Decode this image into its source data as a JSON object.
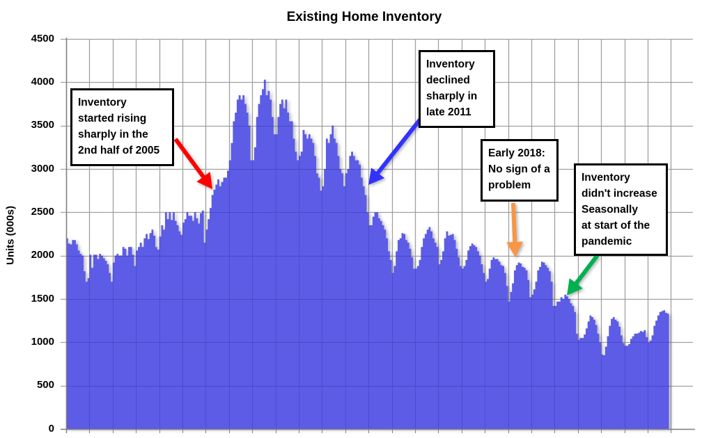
{
  "chart": {
    "title": "Existing Home Inventory",
    "ylabel": "Units (000s)",
    "yticks": [
      "4500",
      "4000",
      "3500",
      "3000",
      "2500",
      "2000",
      "1500",
      "1000",
      "500",
      "0"
    ],
    "bar_color": "#5b5be6",
    "grid_color": "#a0a0a0"
  },
  "callouts": [
    {
      "id": "rising-2005",
      "lines": [
        "Inventory",
        "started rising",
        "sharply in the",
        "2nd half of 2005"
      ],
      "arrow_color": "#ff0000"
    },
    {
      "id": "declined-2011",
      "lines": [
        "Inventory",
        "declined",
        "sharply in",
        "late 2011"
      ],
      "arrow_color": "#3333ff"
    },
    {
      "id": "early-2018",
      "lines": [
        "Early 2018:",
        "No sign of a",
        "problem"
      ],
      "arrow_color": "#f79646"
    },
    {
      "id": "pandemic",
      "lines": [
        "Inventory",
        "didn't increase",
        "Seasonally",
        "at start of the",
        "pandemic"
      ],
      "arrow_color": "#00b050"
    }
  ],
  "chart_data": {
    "type": "bar",
    "title": "Existing Home Inventory",
    "xlabel": "",
    "ylabel": "Units (000s)",
    "ylim": [
      0,
      4500
    ],
    "ytick_step": 500,
    "grid": true,
    "legend": null,
    "frequency": "monthly",
    "start": "1999-01",
    "x_tick_labels_visible": false,
    "values": [
      2200,
      2140,
      2130,
      2180,
      2180,
      2130,
      2060,
      2020,
      2000,
      1820,
      1700,
      1740,
      2010,
      1860,
      2010,
      2010,
      1960,
      2020,
      2000,
      1970,
      1940,
      1900,
      1800,
      1700,
      1920,
      2000,
      2020,
      2000,
      2000,
      2100,
      2080,
      2000,
      2100,
      2100,
      2010,
      1880,
      2060,
      2100,
      2150,
      2100,
      2200,
      2250,
      2190,
      2260,
      2300,
      2230,
      2100,
      2070,
      2220,
      2350,
      2300,
      2500,
      2420,
      2500,
      2410,
      2500,
      2400,
      2350,
      2280,
      2240,
      2380,
      2420,
      2500,
      2460,
      2460,
      2400,
      2500,
      2430,
      2370,
      2490,
      2520,
      2150,
      2300,
      2420,
      2550,
      2700,
      2760,
      2820,
      2880,
      2800,
      2850,
      2900,
      2900,
      2980,
      3100,
      3300,
      3550,
      3650,
      3800,
      3850,
      3800,
      3850,
      3750,
      3650,
      3500,
      3100,
      3100,
      3250,
      3600,
      3750,
      3850,
      3920,
      4030,
      3850,
      3900,
      3800,
      3600,
      3400,
      3400,
      3600,
      3750,
      3800,
      3700,
      3800,
      3650,
      3550,
      3550,
      3350,
      3200,
      3100,
      3150,
      3200,
      3450,
      3400,
      3350,
      3400,
      3350,
      3300,
      3150,
      2950,
      2900,
      2750,
      2800,
      3000,
      3350,
      3300,
      3400,
      3500,
      3350,
      3300,
      3150,
      3000,
      2950,
      2800,
      2950,
      3000,
      3150,
      3200,
      3150,
      3100,
      3100,
      3050,
      2900,
      2800,
      2700,
      2500,
      2350,
      2350,
      2450,
      2500,
      2500,
      2430,
      2400,
      2350,
      2300,
      2200,
      2050,
      1950,
      1800,
      1880,
      2050,
      2180,
      2200,
      2260,
      2250,
      2180,
      2150,
      2080,
      1980,
      1850,
      1850,
      1880,
      1950,
      2100,
      2200,
      2250,
      2300,
      2330,
      2280,
      2200,
      2150,
      2100,
      1900,
      1950,
      2050,
      2200,
      2280,
      2230,
      2240,
      2250,
      2180,
      2080,
      1980,
      1880,
      1850,
      1880,
      1950,
      2060,
      2110,
      2140,
      2120,
      2100,
      2050,
      2000,
      1900,
      1800,
      1700,
      1730,
      1850,
      1950,
      1980,
      1960,
      1960,
      1930,
      1890,
      1880,
      1800,
      1650,
      1470,
      1580,
      1680,
      1830,
      1890,
      1920,
      1910,
      1870,
      1860,
      1830,
      1720,
      1520,
      1550,
      1610,
      1700,
      1830,
      1870,
      1930,
      1920,
      1890,
      1860,
      1820,
      1700,
      1420,
      1420,
      1470,
      1470,
      1520,
      1500,
      1550,
      1530,
      1500,
      1450,
      1420,
      1350,
      1100,
      1030,
      1050,
      1050,
      1090,
      1160,
      1240,
      1310,
      1290,
      1260,
      1200,
      1100,
      1000,
      860,
      850,
      950,
      1070,
      1190,
      1270,
      1290,
      1260,
      1240,
      1180,
      1080,
      990,
      960,
      960,
      980,
      1040,
      1070,
      1100,
      1100,
      1110,
      1130,
      1120,
      1140,
      1060,
      1000,
      1020,
      1080,
      1190,
      1250,
      1310,
      1350,
      1360,
      1370,
      1340,
      1330
    ]
  }
}
